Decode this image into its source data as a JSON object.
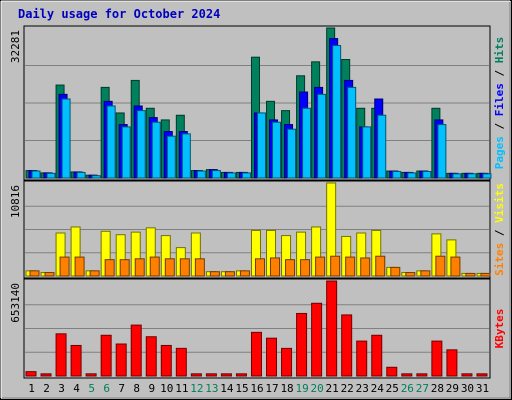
{
  "chart_data": {
    "type": "bar",
    "title": "Daily usage for October 2024",
    "days": [
      "1",
      "2",
      "3",
      "4",
      "5",
      "6",
      "7",
      "8",
      "9",
      "10",
      "11",
      "12",
      "13",
      "14",
      "15",
      "16",
      "17",
      "18",
      "19",
      "20",
      "21",
      "22",
      "23",
      "24",
      "25",
      "26",
      "27",
      "28",
      "29",
      "30",
      "31"
    ],
    "weekend_days": [
      "5",
      "6",
      "12",
      "13",
      "19",
      "20",
      "26",
      "27"
    ],
    "colors": {
      "hits": "#00805c",
      "files": "#0000ff",
      "pages": "#00c0ff",
      "visits": "#ffff00",
      "sites": "#ff8000",
      "kbytes": "#ff0000",
      "weekday_label": "#000000",
      "weekend_label": "#00805c"
    },
    "panels": [
      {
        "name": "hits-files-pages",
        "max_label": "32281",
        "ylim": [
          0,
          32281
        ],
        "right_labels": [
          {
            "text": "Pages",
            "color": "#00c0ff"
          },
          {
            "text": " / ",
            "color": "#000000"
          },
          {
            "text": "Files",
            "color": "#0000ff"
          },
          {
            "text": " / ",
            "color": "#000000"
          },
          {
            "text": "Hits",
            "color": "#00805c"
          }
        ],
        "series": [
          {
            "name": "Hits",
            "color": "#00805c",
            "values": [
              1600,
              1100,
              20000,
              1300,
              600,
              19500,
              14000,
              21000,
              15000,
              12500,
              13500,
              1600,
              1800,
              1200,
              1200,
              26000,
              16500,
              14500,
              22000,
              25000,
              32281,
              25500,
              15000,
              15000,
              1500,
              1200,
              1500,
              15000,
              1000,
              1000,
              1000
            ]
          },
          {
            "name": "Files",
            "color": "#0000ff",
            "values": [
              1600,
              1100,
              18000,
              1300,
              600,
              16500,
              11500,
              15500,
              13000,
              10000,
              10000,
              1600,
              1800,
              1200,
              1200,
              14000,
              12500,
              11500,
              18500,
              19500,
              30000,
              21000,
              11000,
              17000,
              1500,
              1200,
              1500,
              12500,
              1000,
              1000,
              1000
            ]
          },
          {
            "name": "Pages",
            "color": "#00c0ff",
            "values": [
              1500,
              1000,
              17000,
              1200,
              500,
              15500,
              11000,
              14500,
              12000,
              9000,
              9500,
              1500,
              1600,
              1100,
              1100,
              14000,
              12000,
              10500,
              15000,
              18000,
              28500,
              19500,
              11000,
              13500,
              1400,
              1100,
              1400,
              11500,
              900,
              900,
              900
            ]
          }
        ]
      },
      {
        "name": "visits-sites",
        "max_label": "10816",
        "ylim": [
          0,
          10816
        ],
        "right_labels": [
          {
            "text": "Sites",
            "color": "#ff8000"
          },
          {
            "text": " / ",
            "color": "#000000"
          },
          {
            "text": "Visits",
            "color": "#ffff00"
          }
        ],
        "series": [
          {
            "name": "Visits",
            "color": "#ffff00",
            "values": [
              600,
              400,
              5000,
              5700,
              600,
              5200,
              4800,
              5100,
              5600,
              4700,
              3300,
              5000,
              500,
              500,
              600,
              5300,
              5300,
              4700,
              5100,
              5700,
              10816,
              4600,
              5000,
              5300,
              1000,
              400,
              600,
              4900,
              4200,
              300,
              300
            ]
          },
          {
            "name": "Sites",
            "color": "#ff8000",
            "values": [
              600,
              400,
              2200,
              2200,
              600,
              1900,
              1900,
              2000,
              2200,
              2000,
              2000,
              2000,
              500,
              500,
              600,
              2000,
              2100,
              1900,
              1900,
              2200,
              2300,
              2200,
              2100,
              2300,
              1000,
              400,
              600,
              2300,
              2200,
              300,
              300
            ]
          }
        ]
      },
      {
        "name": "kbytes",
        "max_label": "653140",
        "ylim": [
          0,
          653140
        ],
        "right_labels": [
          {
            "text": "KBytes",
            "color": "#ff0000"
          }
        ],
        "series": [
          {
            "name": "KBytes",
            "color": "#ff0000",
            "values": [
              30000,
              15000,
              290000,
              210000,
              15000,
              280000,
              220000,
              350000,
              270000,
              210000,
              190000,
              15000,
              15000,
              15000,
              15000,
              300000,
              260000,
              190000,
              430000,
              500000,
              653140,
              420000,
              240000,
              280000,
              60000,
              15000,
              15000,
              240000,
              180000,
              15000,
              15000
            ]
          }
        ]
      }
    ]
  }
}
